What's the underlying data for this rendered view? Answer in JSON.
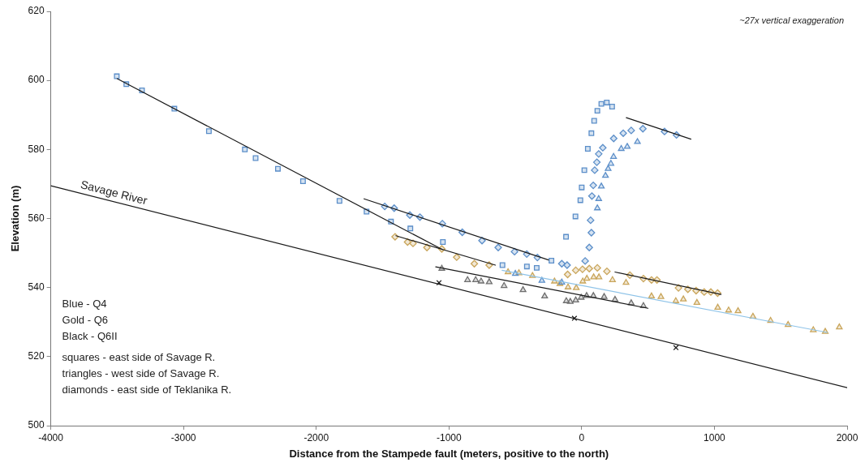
{
  "chart_data": {
    "type": "scatter",
    "xlabel": "Distance from the Stampede fault (meters, positive to the north)",
    "ylabel": "Elevation (m)",
    "xlim": [
      -4000,
      2000
    ],
    "xticks": [
      -4000,
      -3000,
      -2000,
      -1000,
      0,
      1000,
      2000
    ],
    "ylim": [
      500,
      620
    ],
    "yticks": [
      500,
      520,
      540,
      560,
      580,
      600,
      620
    ],
    "grid": false,
    "legend": false,
    "annotations": [
      "~27x vertical exaggeration",
      "Blue - Q4",
      "Gold - Q6",
      "Black - Q6II",
      "squares - east side of Savage R.",
      "triangles - west side of Savage R.",
      "diamonds - east side of Teklanika R."
    ],
    "series": [
      {
        "type": "line",
        "name": "Savage River",
        "color": "#1a1a1a",
        "marker": "none",
        "x": [
          -4000,
          2000
        ],
        "values": [
          569.5,
          511
        ]
      },
      {
        "type": "line",
        "color": "#1a1a1a",
        "marker": "none",
        "x": [
          -3500,
          -1050
        ],
        "values": [
          600.5,
          551
        ]
      },
      {
        "type": "line",
        "color": "#1a1a1a",
        "marker": "none",
        "x": [
          -1640,
          -250
        ],
        "values": [
          565.7,
          548
        ]
      },
      {
        "type": "line",
        "color": "#1a1a1a",
        "marker": "none",
        "x": [
          -1400,
          -650
        ],
        "values": [
          555,
          546.5
        ]
      },
      {
        "type": "line",
        "color": "#1a1a1a",
        "marker": "none",
        "x": [
          250,
          1050
        ],
        "values": [
          544.5,
          538
        ]
      },
      {
        "type": "line",
        "color": "#1a1a1a",
        "marker": "none",
        "x": [
          -1100,
          500
        ],
        "values": [
          546,
          534
        ]
      },
      {
        "type": "line",
        "color": "#1a1a1a",
        "marker": "none",
        "x": [
          336,
          823
        ],
        "values": [
          589.2,
          583
        ]
      },
      {
        "type": "line",
        "color": "#8ec3e8",
        "marker": "none",
        "x": [
          -600,
          1850
        ],
        "values": [
          545,
          527
        ]
      },
      {
        "marker": "square",
        "color": "#5b8ec9",
        "x": [
          -3503,
          -3431,
          -3313,
          -3069,
          -2809,
          -2538,
          -2457,
          -2289,
          -2100,
          -1825,
          -1621,
          -1437,
          -1291,
          -1046,
          -597,
          -413,
          -339,
          -228,
          -118,
          -47,
          -10,
          0,
          20,
          46,
          73,
          94,
          118,
          148,
          189,
          229
        ],
        "values": [
          601.2,
          598.9,
          597.1,
          591.8,
          585.3,
          580,
          577.5,
          574.4,
          570.8,
          565.1,
          562,
          559.1,
          557.1,
          553.2,
          546.5,
          546.1,
          545.7,
          547.8,
          554.7,
          560.6,
          565.3,
          569,
          574,
          580.2,
          584.7,
          588.3,
          591.2,
          593.2,
          593.6,
          592.4
        ]
      },
      {
        "marker": "diamond",
        "color": "#5b8ec9",
        "x": [
          -1484,
          -1413,
          -1295,
          -1219,
          -1050,
          -900,
          -751,
          -629,
          -506,
          -414,
          -334,
          -150,
          -110,
          26,
          57,
          73,
          67,
          77,
          87,
          98,
          114,
          128,
          159,
          241,
          313,
          373,
          461,
          624,
          714
        ],
        "values": [
          563.5,
          563,
          561,
          560.4,
          558.5,
          556,
          553.6,
          551.6,
          550.4,
          549.7,
          548.7,
          546.9,
          546.5,
          547.7,
          551.6,
          555.9,
          559.5,
          566.5,
          569.6,
          574,
          576.3,
          578.7,
          580.5,
          583.2,
          584.7,
          585.5,
          586,
          585.2,
          584.2
        ]
      },
      {
        "marker": "triangle",
        "color": "#5b8ec9",
        "x": [
          -500,
          -300,
          -150,
          88,
          118,
          128,
          148,
          179,
          199,
          220,
          240,
          298,
          343,
          420
        ],
        "values": [
          544,
          542,
          541.5,
          null,
          563,
          565.7,
          569.3,
          572.4,
          574.4,
          575.9,
          577.9,
          580.2,
          580.8,
          582.2
        ]
      },
      {
        "marker": "diamond",
        "color": "#c9a55a",
        "x": [
          -1406,
          -1312,
          -1271,
          -1166,
          -1054,
          -942,
          -809,
          -697,
          -106,
          -45,
          6,
          57,
          118,
          190,
          363,
          465,
          526,
          567,
          729,
          800,
          862,
          923,
          973,
          1024
        ],
        "values": [
          554.7,
          553.2,
          552.8,
          551.6,
          551.2,
          548.8,
          546.9,
          546.5,
          543.8,
          545,
          545.3,
          545.5,
          545.7,
          544.7,
          543.6,
          542.6,
          542.2,
          542.2,
          539.9,
          539.5,
          539.1,
          538.7,
          538.7,
          538.4
        ]
      },
      {
        "marker": "triangle",
        "color": "#c9a55a",
        "x": [
          -555,
          -473,
          -371,
          -205,
          -164,
          -103,
          -41,
          8,
          39,
          90,
          130,
          232,
          334,
          526,
          597,
          709,
          766,
          868,
          1025,
          1107,
          1178,
          1290,
          1423,
          1555,
          1745,
          1835,
          1941
        ],
        "values": [
          544.5,
          544.2,
          543.4,
          541.8,
          541.1,
          540.1,
          539.9,
          541.8,
          542.6,
          543,
          543,
          542.2,
          541.4,
          537.5,
          537.3,
          536.1,
          536.6,
          535.6,
          534.2,
          533.4,
          533.2,
          531.6,
          530.4,
          529.2,
          527.7,
          527.2,
          528.5
        ]
      },
      {
        "marker": "triangle",
        "color": "#6e6e6e",
        "x": [
          -1054,
          -860,
          -799,
          -758,
          -697,
          -585,
          -442,
          -279,
          -116,
          -86,
          -45,
          -4,
          37,
          88,
          169,
          251,
          373,
          465
        ],
        "values": [
          545.5,
          542.2,
          542.2,
          541.8,
          541.6,
          540.5,
          539.3,
          537.5,
          536.1,
          535.9,
          536.3,
          537.1,
          537.6,
          537.6,
          537.3,
          536.5,
          535.5,
          534.7
        ]
      },
      {
        "marker": "cross",
        "color": "#1a1a1a",
        "x": [
          -1075,
          -55,
          710
        ],
        "values": [
          541.4,
          531.1,
          522.6
        ]
      }
    ]
  }
}
